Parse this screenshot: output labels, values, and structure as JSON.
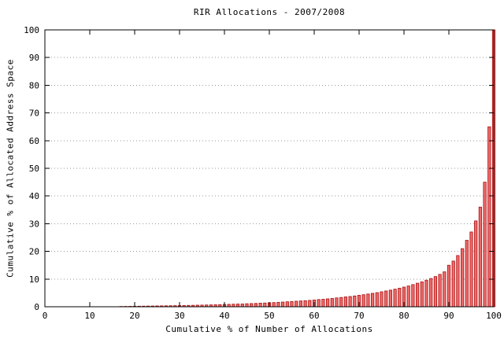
{
  "chart_data": {
    "type": "bar",
    "title": "RIR Allocations - 2007/2008",
    "xlabel": "Cumulative % of Number of Allocations",
    "ylabel": "Cumulative % of Allocated Address Space",
    "xlim": [
      0,
      100
    ],
    "ylim": [
      0,
      100
    ],
    "xticks": [
      0,
      10,
      20,
      30,
      40,
      50,
      60,
      70,
      80,
      90,
      100
    ],
    "yticks": [
      0,
      10,
      20,
      30,
      40,
      50,
      60,
      70,
      80,
      90,
      100
    ],
    "grid": "horizontal-dotted",
    "legend": "none",
    "bar_x_first": 17,
    "bar_x_step": 1,
    "values": [
      0.1,
      0.12,
      0.15,
      0.17,
      0.2,
      0.22,
      0.25,
      0.27,
      0.3,
      0.32,
      0.35,
      0.38,
      0.4,
      0.43,
      0.46,
      0.5,
      0.53,
      0.57,
      0.6,
      0.64,
      0.68,
      0.72,
      0.77,
      0.82,
      0.87,
      0.92,
      0.97,
      1.0,
      1.1,
      1.15,
      1.2,
      1.3,
      1.35,
      1.45,
      1.5,
      1.6,
      1.7,
      1.8,
      1.9,
      2.0,
      2.1,
      2.2,
      2.3,
      2.45,
      2.6,
      2.7,
      2.85,
      3.0,
      3.2,
      3.35,
      3.55,
      3.7,
      3.9,
      4.15,
      4.35,
      4.6,
      4.85,
      5.1,
      5.4,
      5.7,
      6.0,
      6.35,
      6.7,
      7.1,
      7.5,
      8.0,
      8.5,
      9.0,
      9.6,
      10.2,
      10.9,
      11.7,
      12.6,
      15.0,
      16.5,
      18.5,
      21.0,
      24.0,
      27.0,
      31.0,
      36.0,
      45.0,
      65.0,
      100.0
    ],
    "colors": {
      "bar_fill": "#ee6a6a",
      "bar_edge": "#aa1010",
      "grid": "#9a9a9a",
      "axis": "#000000",
      "background": "#ffffff"
    }
  }
}
